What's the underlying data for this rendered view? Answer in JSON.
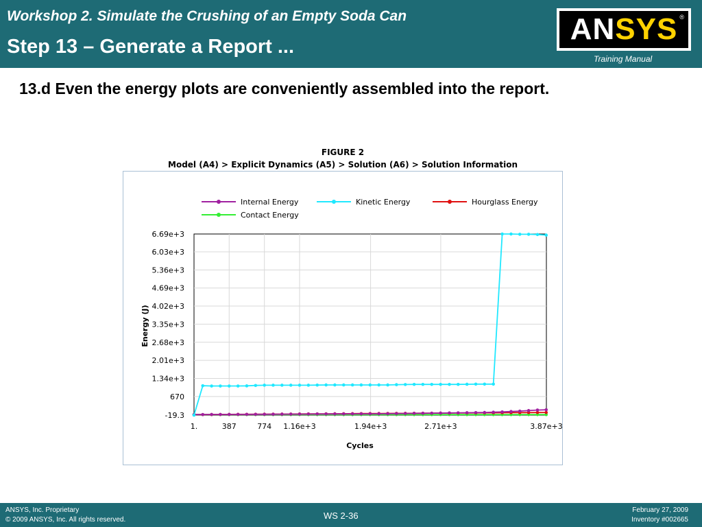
{
  "header": {
    "title_line1": "Workshop 2.  Simulate the Crushing of an Empty Soda Can",
    "title_line2": "Step 13 – Generate a Report ...",
    "training_label": "Training Manual",
    "logo": {
      "text_an": "AN",
      "text_sys": "SYS",
      "reg_mark": "®"
    }
  },
  "body": {
    "subtitle": "13.d  Even the energy plots are conveniently assembled into the report."
  },
  "figure": {
    "title": "FIGURE 2",
    "subtitle": "Model (A4) > Explicit Dynamics (A5) > Solution (A6) > Solution Information"
  },
  "colors": {
    "header_bg": "#1e6b75",
    "internal": "#a020a0",
    "kinetic": "#20e8ff",
    "hourglass": "#e01010",
    "contact": "#33ee33"
  },
  "chart_data": {
    "type": "line",
    "xlabel": "Cycles",
    "ylabel": "Energy (J)",
    "xlim": [
      1,
      3870
    ],
    "ylim": [
      -19.3,
      6690
    ],
    "x_ticks": [
      1,
      387,
      774,
      1160,
      1940,
      2710,
      3870
    ],
    "x_tick_labels": [
      "1.",
      "387",
      "774",
      "1.16e+3",
      "1.94e+3",
      "2.71e+3",
      "3.87e+3"
    ],
    "y_ticks": [
      -19.3,
      670,
      1340,
      2010,
      2680,
      3350,
      4020,
      4690,
      5360,
      6030,
      6690
    ],
    "y_tick_labels": [
      "-19.3",
      "670",
      "1.34e+3",
      "2.01e+3",
      "2.68e+3",
      "3.35e+3",
      "4.02e+3",
      "4.69e+3",
      "5.36e+3",
      "6.03e+3",
      "6.69e+3"
    ],
    "grid": true,
    "legend_position": "top",
    "x": [
      1,
      97,
      194,
      290,
      387,
      484,
      580,
      677,
      774,
      870,
      967,
      1064,
      1160,
      1257,
      1354,
      1451,
      1547,
      1644,
      1741,
      1837,
      1934,
      2031,
      2128,
      2224,
      2321,
      2418,
      2514,
      2611,
      2708,
      2805,
      2901,
      2998,
      3095,
      3191,
      3288,
      3385,
      3482,
      3578,
      3675,
      3772,
      3868
    ],
    "series": [
      {
        "name": "Internal Energy",
        "color": "#a020a0",
        "values": [
          0,
          3,
          5,
          6,
          7,
          8,
          9,
          10,
          12,
          14,
          16,
          18,
          20,
          22,
          24,
          25,
          26,
          27,
          28,
          29,
          30,
          32,
          34,
          38,
          42,
          46,
          50,
          54,
          58,
          62,
          66,
          70,
          75,
          80,
          90,
          100,
          115,
          130,
          150,
          170,
          180
        ]
      },
      {
        "name": "Kinetic Energy",
        "color": "#20e8ff",
        "values": [
          -19.3,
          1070,
          1060,
          1060,
          1060,
          1060,
          1065,
          1080,
          1090,
          1090,
          1090,
          1090,
          1090,
          1090,
          1095,
          1100,
          1100,
          1100,
          1100,
          1100,
          1100,
          1100,
          1100,
          1110,
          1115,
          1120,
          1120,
          1120,
          1120,
          1120,
          1120,
          1125,
          1130,
          1130,
          1130,
          6690,
          6690,
          6680,
          6680,
          6670,
          6650
        ]
      },
      {
        "name": "Hourglass Energy",
        "color": "#e01010",
        "values": [
          0,
          2,
          4,
          6,
          8,
          10,
          12,
          14,
          16,
          18,
          20,
          22,
          24,
          26,
          28,
          30,
          32,
          34,
          36,
          38,
          40,
          42,
          44,
          46,
          48,
          50,
          52,
          54,
          56,
          58,
          60,
          62,
          64,
          66,
          68,
          70,
          72,
          74,
          76,
          78,
          80
        ]
      },
      {
        "name": "Contact Energy",
        "color": "#33ee33",
        "values": [
          0,
          0,
          0,
          0,
          0,
          0,
          0,
          0,
          0,
          0,
          0,
          0,
          0,
          0,
          0,
          0,
          0,
          0,
          0,
          0,
          0,
          0,
          0,
          0,
          0,
          0,
          0,
          0,
          0,
          0,
          0,
          0,
          0,
          0,
          0,
          0,
          0,
          0,
          0,
          0,
          0
        ]
      }
    ]
  },
  "footer": {
    "left_line1": "ANSYS, Inc. Proprietary",
    "left_line2": "© 2009 ANSYS, Inc.  All rights reserved.",
    "center": "WS 2-36",
    "right_line1": "February 27, 2009",
    "right_line2": "Inventory #002665"
  }
}
